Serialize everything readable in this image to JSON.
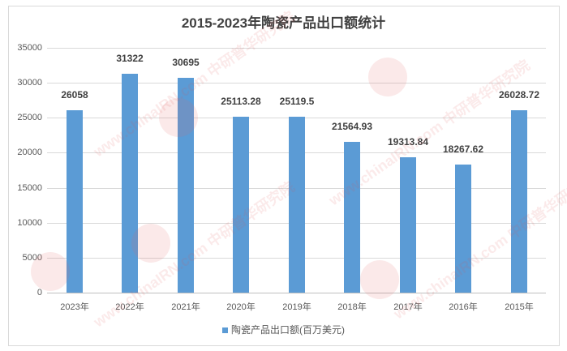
{
  "chart_data": {
    "type": "bar",
    "title": "2015-2023年陶瓷产品出口额统计",
    "categories": [
      "2023年",
      "2022年",
      "2021年",
      "2020年",
      "2019年",
      "2018年",
      "2017年",
      "2016年",
      "2015年"
    ],
    "series": [
      {
        "name": "陶瓷产品出口额(百万美元)",
        "values": [
          26058,
          31322,
          30695,
          25113.28,
          25119.5,
          21564.93,
          19313.84,
          18267.62,
          26028.72
        ],
        "labels": [
          "26058",
          "31322",
          "30695",
          "25113.28",
          "25119.5",
          "21564.93",
          "19313.84",
          "18267.62",
          "26028.72"
        ],
        "color": "#5b9bd5"
      }
    ],
    "xlabel": "",
    "ylabel": "",
    "ylim": [
      0,
      35000
    ],
    "yticks": [
      "0",
      "5000",
      "10000",
      "15000",
      "20000",
      "25000",
      "30000",
      "35000"
    ],
    "grid": true,
    "legend_position": "bottom"
  },
  "watermark": {
    "text": "www.chinaIRN.com 中研普华研究院",
    "logo": "CIRN"
  }
}
